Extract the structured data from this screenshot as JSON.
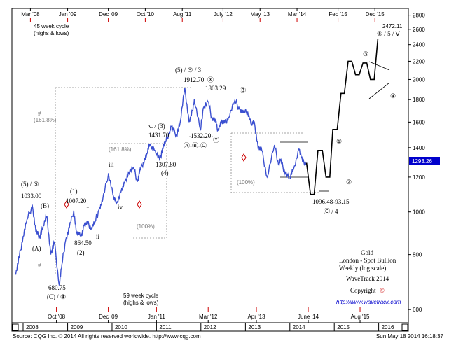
{
  "chart_data": {
    "type": "line",
    "y_scale": "log",
    "ylim": [
      560,
      2900
    ],
    "xlim": [
      "2007-10-01",
      "2016-09-01"
    ],
    "y_ticks": [
      600,
      800,
      1000,
      1200,
      1400,
      1600,
      1800,
      2000,
      2200,
      2400,
      2600,
      2800
    ],
    "current_price": "1293.26",
    "top_dates": [
      "Mar '08",
      "Jan '09",
      "Dec '09",
      "Oct '10",
      "Aug '11",
      "July '12",
      "May '13",
      "Mar '14",
      "Feb '15",
      "Dec '15"
    ],
    "bottom_dates": [
      "Oct '08",
      "Dec '09",
      "Jan '11",
      "Mar '12",
      "Apr '13",
      "June '14",
      "Aug '15"
    ],
    "years": [
      "2008",
      "2009",
      "2010",
      "2011",
      "2012",
      "2013",
      "2014",
      "2015",
      "2016"
    ],
    "cycle_top": "45 week cycle",
    "cycle_top_sub": "(highs & lows)",
    "cycle_bottom": "59 week cycle",
    "cycle_bottom_sub": "(highs & lows)",
    "series": [
      {
        "x": [
          "2007-11-01",
          "2007-12-01",
          "2008-01-01",
          "2008-02-01",
          "2008-03-17",
          "2008-04-15",
          "2008-05-15",
          "2008-06-15",
          "2008-07-15",
          "2008-08-15",
          "2008-09-15",
          "2008-10-24",
          "2008-11-15",
          "2008-12-15",
          "2009-01-15",
          "2009-02-20",
          "2009-03-15",
          "2009-04-20",
          "2009-05-15",
          "2009-06-15",
          "2009-07-15",
          "2009-08-15",
          "2009-09-15",
          "2009-10-15",
          "2009-12-03",
          "2010-01-15",
          "2010-02-05",
          "2010-03-15",
          "2010-04-15",
          "2010-05-15",
          "2010-06-28",
          "2010-07-28",
          "2010-08-15",
          "2010-09-15",
          "2010-10-15",
          "2010-11-09",
          "2010-12-15",
          "2011-01-28",
          "2011-02-20",
          "2011-03-15",
          "2011-04-15",
          "2011-05-02",
          "2011-06-15",
          "2011-07-15",
          "2011-08-22",
          "2011-09-26",
          "2011-10-15",
          "2011-11-08",
          "2011-12-29",
          "2012-01-20",
          "2012-02-29",
          "2012-03-30",
          "2012-04-30",
          "2012-05-16",
          "2012-06-15",
          "2012-07-15",
          "2012-08-15",
          "2012-10-05",
          "2012-11-15",
          "2012-12-15",
          "2013-01-20",
          "2013-02-20",
          "2013-03-15",
          "2013-04-15",
          "2013-05-15",
          "2013-06-28",
          "2013-08-28",
          "2013-09-30",
          "2013-10-15",
          "2013-11-15",
          "2013-12-31",
          "2014-01-31",
          "2014-03-17",
          "2014-04-15",
          "2014-05-18"
        ],
        "y": [
          720,
          790,
          880,
          960,
          1033,
          900,
          880,
          930,
          980,
          800,
          850,
          681,
          760,
          860,
          920,
          1007,
          900,
          880,
          930,
          940,
          920,
          950,
          1010,
          1060,
          1225,
          1080,
          1045,
          1110,
          1160,
          1230,
          1262,
          1170,
          1230,
          1300,
          1360,
          1425,
          1380,
          1308,
          1400,
          1440,
          1510,
          1560,
          1500,
          1600,
          1913,
          1600,
          1650,
          1803,
          1532,
          1720,
          1780,
          1640,
          1620,
          1530,
          1600,
          1590,
          1640,
          1790,
          1710,
          1680,
          1690,
          1580,
          1600,
          1400,
          1380,
          1200,
          1420,
          1280,
          1310,
          1250,
          1190,
          1250,
          1390,
          1300,
          1293
        ]
      }
    ],
    "projection": {
      "x": [
        "2014-05-18",
        "2014-06-20",
        "2014-07-20",
        "2014-08-20",
        "2014-09-25",
        "2014-10-25",
        "2014-11-25",
        "2014-12-20",
        "2015-01-25",
        "2015-02-25",
        "2015-03-25",
        "2015-04-25",
        "2015-05-25",
        "2015-06-25",
        "2015-07-25",
        "2015-08-25",
        "2015-09-25",
        "2015-10-25",
        "2015-11-25",
        "2015-12-25"
      ],
      "y": [
        1293,
        1096,
        1096,
        1380,
        1380,
        1200,
        1200,
        1540,
        1540,
        1860,
        1860,
        2200,
        2200,
        2050,
        2050,
        2180,
        2180,
        2000,
        2000,
        2472
      ]
    },
    "box_labels": [
      "161.8%",
      "(100%)"
    ],
    "price_labels": [
      "1033.00",
      "1007.20",
      "864.50",
      "680.75",
      "1431.70",
      "1307.80",
      "1912.70",
      "1803.29",
      "1532.20",
      "1096.48-93.15",
      "2472.11"
    ],
    "wave_labels": [
      "(5) / ⑤",
      "(B)",
      "(A)",
      "(1)",
      "(2)",
      "(C) / ④",
      "1",
      "ii",
      "iii",
      "iv",
      "v. / (3)",
      "(4)",
      "(5) / ⑤ / 3",
      "Ⓧ",
      "Ⓑ",
      "Ⓐ-Ⓑ-Ⓒ",
      "Ⓨ",
      "①",
      "②",
      "③",
      "④",
      "Ⓒ / 4",
      "⑤ / 5 / Ⅴ",
      "#",
      "(161.8%)",
      "(100%)",
      "(161.8%)",
      "(100%)",
      "#"
    ],
    "info": {
      "title": "Gold",
      "line2": "London - Spot Bullion",
      "line3": "Weekly (log scale)",
      "brand": "WaveTrack 2014",
      "copyright": "Copyright",
      "copyright_symbol": "©",
      "url": "http://www.wavetrack.com"
    },
    "footer_left": "Source: CQG Inc. © 2014 All rights reserved worldwide. http://www.cqg.com",
    "footer_right": "Sun May 18 2014 16:18:37",
    "colors": {
      "series": "#3a4fd0",
      "projection": "#000000",
      "accent": "#cc0000",
      "price_box": "#0000cc"
    }
  }
}
